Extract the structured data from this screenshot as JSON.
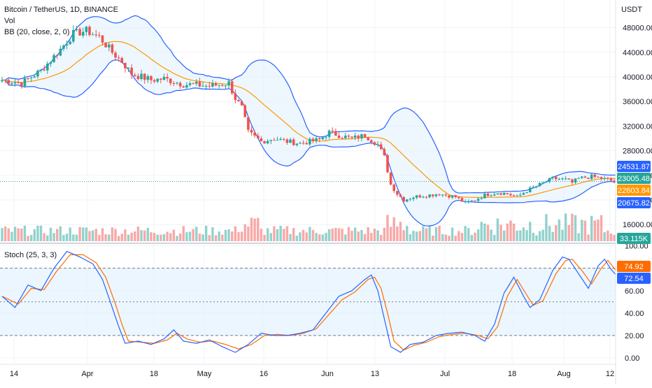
{
  "header": {
    "symbol": "Bitcoin / TetherUS, 1D, BINANCE",
    "vol_label": "Vol",
    "bb_label": "BB (20, close, 2, 0)",
    "stoch_label": "Stoch (25, 3, 3)",
    "currency": "USDT"
  },
  "colors": {
    "up": "#26a69a",
    "down": "#ef5350",
    "bb_basis": "#ff9800",
    "bb_band": "#2962ff",
    "bb_fill": "#e3f2fd",
    "stoch_k": "#2962ff",
    "stoch_d": "#ff6d00"
  },
  "badges": {
    "upper": "24531.87",
    "last": "23005.48",
    "basis": "22603.84",
    "lower": "20675.82",
    "volume": "33.115K",
    "stoch_d": "74.92",
    "stoch_k": "72.54"
  },
  "chart_data": [
    {
      "type": "candlestick",
      "title": "Bitcoin / TetherUS, 1D, BINANCE",
      "ylabel": "USDT",
      "x_ticks": [
        "14",
        "Apr",
        "18",
        "May",
        "16",
        "Jun",
        "13",
        "Jul",
        "18",
        "Aug",
        "12"
      ],
      "y_ticks": [
        16000,
        20000,
        24000,
        28000,
        32000,
        36000,
        40000,
        44000,
        48000
      ],
      "ylim": [
        13300,
        52500
      ],
      "close_keypoints": [
        [
          0,
          39500
        ],
        [
          6,
          39000
        ],
        [
          12,
          41000
        ],
        [
          18,
          44500
        ],
        [
          22,
          47000
        ],
        [
          26,
          47500
        ],
        [
          30,
          46500
        ],
        [
          34,
          44000
        ],
        [
          37,
          42500
        ],
        [
          40,
          40500
        ],
        [
          46,
          39500
        ],
        [
          50,
          39700
        ],
        [
          56,
          38800
        ],
        [
          60,
          38700
        ],
        [
          64,
          38500
        ],
        [
          70,
          39000
        ],
        [
          72,
          36500
        ],
        [
          74,
          35000
        ],
        [
          76,
          31000
        ],
        [
          80,
          29500
        ],
        [
          84,
          30000
        ],
        [
          88,
          29500
        ],
        [
          92,
          29200
        ],
        [
          98,
          29800
        ],
        [
          101,
          31000
        ],
        [
          104,
          30500
        ],
        [
          108,
          30000
        ],
        [
          112,
          30500
        ],
        [
          116,
          29000
        ],
        [
          118,
          27000
        ],
        [
          120,
          22500
        ],
        [
          122,
          21000
        ],
        [
          124,
          20000
        ],
        [
          127,
          20500
        ],
        [
          130,
          20700
        ],
        [
          135,
          21000
        ],
        [
          140,
          20500
        ],
        [
          143,
          19500
        ],
        [
          146,
          20000
        ],
        [
          149,
          20800
        ],
        [
          153,
          21200
        ],
        [
          156,
          21000
        ],
        [
          159,
          20500
        ],
        [
          162,
          21500
        ],
        [
          166,
          22500
        ],
        [
          170,
          23500
        ],
        [
          174,
          23300
        ],
        [
          176,
          22800
        ],
        [
          178,
          23500
        ],
        [
          182,
          23800
        ],
        [
          186,
          23400
        ],
        [
          189,
          23000
        ]
      ],
      "volume_range": [
        6000,
        40000
      ],
      "bollinger": {
        "length": 20,
        "source": "close",
        "mult": 2,
        "offset": 0,
        "upper": 24531.87,
        "basis": 22603.84,
        "lower": 20675.82
      }
    },
    {
      "type": "line",
      "title": "Stoch (25, 3, 3)",
      "y_ticks": [
        0,
        20,
        40,
        60,
        80,
        100
      ],
      "ylim": [
        -5,
        101
      ],
      "bands": [
        20,
        50,
        80
      ],
      "k_keypoints": [
        [
          0,
          55
        ],
        [
          4,
          45
        ],
        [
          8,
          65
        ],
        [
          12,
          60
        ],
        [
          16,
          80
        ],
        [
          20,
          95
        ],
        [
          24,
          90
        ],
        [
          28,
          84
        ],
        [
          31,
          70
        ],
        [
          34,
          45
        ],
        [
          36,
          28
        ],
        [
          38,
          13
        ],
        [
          42,
          15
        ],
        [
          46,
          12
        ],
        [
          50,
          17
        ],
        [
          53,
          25
        ],
        [
          56,
          15
        ],
        [
          60,
          13
        ],
        [
          64,
          16
        ],
        [
          68,
          10
        ],
        [
          72,
          5
        ],
        [
          76,
          12
        ],
        [
          80,
          22
        ],
        [
          84,
          20
        ],
        [
          88,
          20
        ],
        [
          92,
          22
        ],
        [
          96,
          25
        ],
        [
          100,
          40
        ],
        [
          104,
          55
        ],
        [
          108,
          60
        ],
        [
          112,
          70
        ],
        [
          114,
          74
        ],
        [
          116,
          60
        ],
        [
          118,
          35
        ],
        [
          120,
          10
        ],
        [
          123,
          5
        ],
        [
          126,
          12
        ],
        [
          130,
          14
        ],
        [
          134,
          20
        ],
        [
          138,
          22
        ],
        [
          142,
          23
        ],
        [
          146,
          20
        ],
        [
          149,
          15
        ],
        [
          152,
          30
        ],
        [
          155,
          58
        ],
        [
          158,
          72
        ],
        [
          161,
          55
        ],
        [
          163,
          45
        ],
        [
          166,
          52
        ],
        [
          170,
          78
        ],
        [
          173,
          90
        ],
        [
          175,
          88
        ],
        [
          178,
          75
        ],
        [
          181,
          62
        ],
        [
          184,
          82
        ],
        [
          186,
          88
        ],
        [
          188,
          79
        ],
        [
          190,
          72.54
        ]
      ],
      "d_keypoints": [
        [
          0,
          55
        ],
        [
          5,
          48
        ],
        [
          9,
          62
        ],
        [
          13,
          61
        ],
        [
          17,
          78
        ],
        [
          21,
          92
        ],
        [
          25,
          92
        ],
        [
          29,
          85
        ],
        [
          32,
          72
        ],
        [
          35,
          48
        ],
        [
          37,
          30
        ],
        [
          39,
          15
        ],
        [
          43,
          14
        ],
        [
          47,
          13
        ],
        [
          51,
          16
        ],
        [
          54,
          22
        ],
        [
          57,
          17
        ],
        [
          61,
          14
        ],
        [
          65,
          15
        ],
        [
          69,
          12
        ],
        [
          73,
          8
        ],
        [
          77,
          12
        ],
        [
          81,
          20
        ],
        [
          85,
          21
        ],
        [
          89,
          20
        ],
        [
          93,
          22
        ],
        [
          97,
          26
        ],
        [
          101,
          39
        ],
        [
          105,
          52
        ],
        [
          109,
          59
        ],
        [
          113,
          70
        ],
        [
          115,
          72
        ],
        [
          117,
          62
        ],
        [
          119,
          40
        ],
        [
          121,
          15
        ],
        [
          124,
          7
        ],
        [
          127,
          11
        ],
        [
          131,
          14
        ],
        [
          135,
          19
        ],
        [
          139,
          21
        ],
        [
          143,
          22
        ],
        [
          147,
          20
        ],
        [
          150,
          17
        ],
        [
          153,
          28
        ],
        [
          156,
          55
        ],
        [
          159,
          70
        ],
        [
          162,
          56
        ],
        [
          164,
          47
        ],
        [
          167,
          51
        ],
        [
          171,
          75
        ],
        [
          174,
          87
        ],
        [
          176,
          88
        ],
        [
          179,
          78
        ],
        [
          182,
          66
        ],
        [
          185,
          80
        ],
        [
          187,
          87
        ],
        [
          189,
          80
        ],
        [
          190,
          74.92
        ]
      ]
    }
  ]
}
